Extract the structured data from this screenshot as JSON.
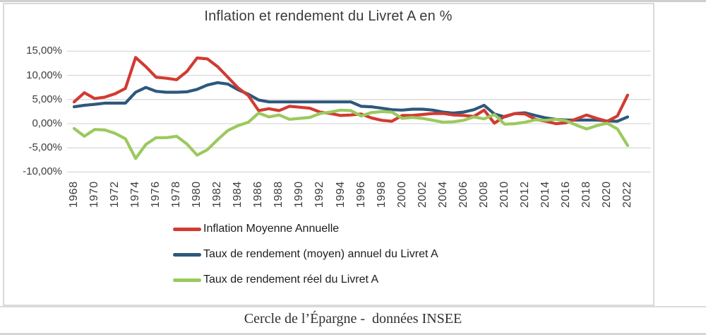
{
  "caption": "Cercle de l’Épargne -  données INSEE",
  "colors": {
    "inflation_red": "#d13b32",
    "livret_blue": "#2e587c",
    "real_green": "#9bc95e",
    "gridline": "#d9d9d9",
    "frame": "#d9d9d9",
    "axis_text": "#3d3d3d"
  },
  "chart_data": {
    "type": "line",
    "title": "Inflation et rendement du Livret A en %",
    "grid": "horizontal",
    "legend_position": "bottom-left",
    "ylim": [
      -10,
      15
    ],
    "ytick_values": [
      15,
      10,
      5,
      0,
      -5,
      -10
    ],
    "ytick_labels": [
      "15,00%",
      "10,00%",
      "5,00%",
      "0,00%",
      "-5,00%",
      "-10,00%"
    ],
    "xtick_labels": [
      "1968",
      "1970",
      "1972",
      "1974",
      "1976",
      "1978",
      "1980",
      "1982",
      "1984",
      "1986",
      "1988",
      "1990",
      "1992",
      "1994",
      "1996",
      "1998",
      "2000",
      "2002",
      "2004",
      "2006",
      "2008",
      "2010",
      "2012",
      "2014",
      "2016",
      "2018",
      "2020",
      "2022"
    ],
    "x": [
      1968,
      1969,
      1970,
      1971,
      1972,
      1973,
      1974,
      1975,
      1976,
      1977,
      1978,
      1979,
      1980,
      1981,
      1982,
      1983,
      1984,
      1985,
      1986,
      1987,
      1988,
      1989,
      1990,
      1991,
      1992,
      1993,
      1994,
      1995,
      1996,
      1997,
      1998,
      1999,
      2000,
      2001,
      2002,
      2003,
      2004,
      2005,
      2006,
      2007,
      2008,
      2009,
      2010,
      2011,
      2012,
      2013,
      2014,
      2015,
      2016,
      2017,
      2018,
      2019,
      2020,
      2021,
      2022
    ],
    "series": [
      {
        "name": "Inflation Moyenne Annuelle",
        "color": "#d13b32",
        "values": [
          4.5,
          6.4,
          5.2,
          5.5,
          6.2,
          7.3,
          13.7,
          11.8,
          9.6,
          9.4,
          9.1,
          10.8,
          13.6,
          13.4,
          11.8,
          9.6,
          7.4,
          5.8,
          2.7,
          3.1,
          2.7,
          3.6,
          3.4,
          3.2,
          2.4,
          2.1,
          1.7,
          1.8,
          2.0,
          1.2,
          0.7,
          0.5,
          1.7,
          1.7,
          1.9,
          2.1,
          2.1,
          1.8,
          1.7,
          1.5,
          2.8,
          0.1,
          1.5,
          2.1,
          2.0,
          0.9,
          0.5,
          0.0,
          0.2,
          1.0,
          1.8,
          1.1,
          0.5,
          1.6,
          5.9
        ]
      },
      {
        "name": "Taux de rendement (moyen) annuel du Livret A",
        "color": "#2e587c",
        "values": [
          3.5,
          3.8,
          4.0,
          4.25,
          4.25,
          4.25,
          6.5,
          7.5,
          6.7,
          6.5,
          6.5,
          6.6,
          7.1,
          8.0,
          8.5,
          8.2,
          7.0,
          6.1,
          4.9,
          4.5,
          4.5,
          4.5,
          4.5,
          4.5,
          4.5,
          4.5,
          4.5,
          4.5,
          3.6,
          3.5,
          3.2,
          2.9,
          2.8,
          3.0,
          3.0,
          2.8,
          2.4,
          2.2,
          2.4,
          2.9,
          3.8,
          2.0,
          1.4,
          2.1,
          2.25,
          1.7,
          1.2,
          0.9,
          0.75,
          0.75,
          0.75,
          0.75,
          0.55,
          0.5,
          1.4
        ]
      },
      {
        "name": "Taux de rendement réel du Livret A",
        "color": "#9bc95e",
        "values": [
          -1.0,
          -2.6,
          -1.2,
          -1.3,
          -2.0,
          -3.1,
          -7.2,
          -4.3,
          -2.9,
          -2.9,
          -2.6,
          -4.2,
          -6.5,
          -5.4,
          -3.3,
          -1.4,
          -0.4,
          0.3,
          2.2,
          1.4,
          1.8,
          0.9,
          1.1,
          1.3,
          2.1,
          2.4,
          2.8,
          2.7,
          1.6,
          2.3,
          2.5,
          2.4,
          1.1,
          1.3,
          1.1,
          0.7,
          0.3,
          0.4,
          0.7,
          1.4,
          1.0,
          1.9,
          -0.1,
          0.0,
          0.3,
          0.8,
          0.7,
          0.9,
          0.6,
          -0.3,
          -1.1,
          -0.4,
          0.1,
          -1.1,
          -4.5
        ]
      }
    ]
  }
}
